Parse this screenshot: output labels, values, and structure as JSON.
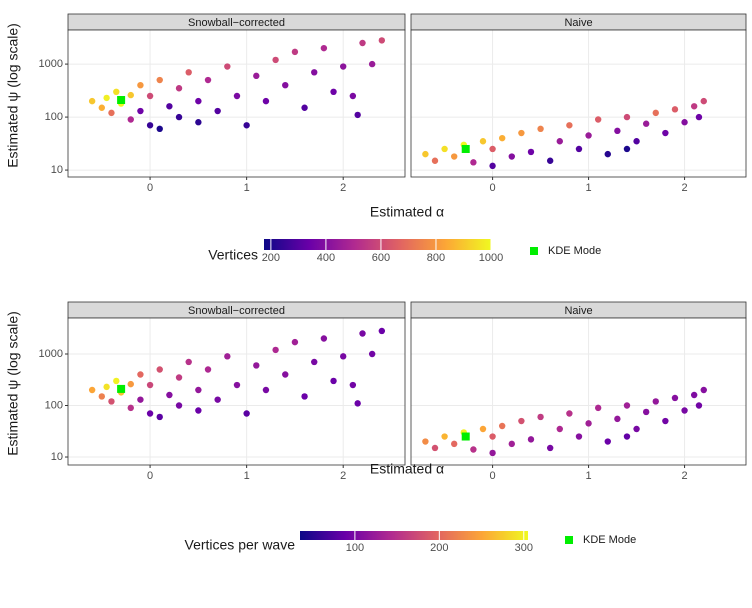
{
  "chart_data": [
    {
      "type": "scatter",
      "y_label": "Estimated ψ (log scale)",
      "x_label": "Estimated α",
      "log_y": true,
      "grid": true,
      "xlim": [
        -0.85,
        2.64
      ],
      "xticks": [
        0,
        1,
        2
      ],
      "ylim": [
        7.4,
        4400
      ],
      "yticks": [
        10,
        100,
        1000
      ],
      "colorbar": {
        "title": "Vertices",
        "lim": [
          175,
          1000
        ],
        "ticks": [
          200,
          400,
          600,
          800,
          1000
        ],
        "colormap": [
          "#0d0887",
          "#6a00a8",
          "#b12a90",
          "#e16462",
          "#fca636",
          "#f0f921"
        ]
      },
      "mode": {
        "name": "KDE Mode",
        "color": "#00ee00"
      },
      "facets": [
        {
          "title": "Snowball−corrected",
          "mode_x": -0.3,
          "mode_y": 210,
          "x": [
            -0.6,
            -0.5,
            -0.45,
            -0.4,
            -0.35,
            -0.3,
            -0.2,
            -0.2,
            -0.1,
            -0.1,
            0,
            0,
            0.1,
            0.1,
            0.2,
            0.3,
            0.3,
            0.4,
            0.5,
            0.5,
            0.6,
            0.7,
            0.8,
            0.9,
            1.0,
            1.1,
            1.2,
            1.3,
            1.4,
            1.5,
            1.6,
            1.7,
            1.8,
            1.9,
            2.0,
            2.1,
            2.2,
            2.4,
            2.3,
            2.15
          ],
          "y": [
            200,
            150,
            230,
            120,
            300,
            180,
            260,
            90,
            400,
            130,
            70,
            250,
            500,
            60,
            160,
            350,
            100,
            700,
            200,
            80,
            500,
            130,
            900,
            250,
            70,
            600,
            200,
            1200,
            400,
            1700,
            150,
            700,
            2000,
            300,
            900,
            250,
            2500,
            2800,
            1000,
            110
          ],
          "c": [
            900,
            850,
            980,
            700,
            950,
            1000,
            900,
            500,
            800,
            350,
            250,
            600,
            750,
            200,
            300,
            550,
            250,
            650,
            350,
            230,
            500,
            300,
            600,
            380,
            250,
            450,
            350,
            600,
            400,
            550,
            300,
            400,
            500,
            350,
            420,
            380,
            550,
            600,
            450,
            300
          ]
        },
        {
          "title": "Naive",
          "mode_x": -0.28,
          "mode_y": 25,
          "x": [
            -0.7,
            -0.6,
            -0.5,
            -0.4,
            -0.3,
            -0.2,
            -0.1,
            0,
            0,
            0.1,
            0.2,
            0.3,
            0.4,
            0.5,
            0.6,
            0.7,
            0.8,
            0.9,
            1.0,
            1.1,
            1.2,
            1.3,
            1.4,
            1.5,
            1.6,
            1.7,
            1.8,
            1.9,
            2.0,
            2.1,
            2.2,
            2.15,
            1.4
          ],
          "y": [
            20,
            15,
            25,
            18,
            30,
            14,
            35,
            12,
            25,
            40,
            18,
            50,
            22,
            60,
            15,
            35,
            70,
            25,
            45,
            90,
            20,
            55,
            100,
            35,
            75,
            120,
            50,
            140,
            80,
            160,
            200,
            100,
            25
          ],
          "c": [
            900,
            700,
            950,
            800,
            1000,
            500,
            900,
            300,
            650,
            850,
            400,
            800,
            350,
            750,
            250,
            450,
            700,
            300,
            450,
            650,
            220,
            400,
            600,
            300,
            450,
            700,
            350,
            650,
            400,
            550,
            600,
            350,
            200
          ]
        }
      ]
    },
    {
      "type": "scatter",
      "y_label": "Estimated ψ (log scale)",
      "x_label": "Estimated α",
      "log_y": true,
      "grid": true,
      "xlim": [
        -0.85,
        2.64
      ],
      "xticks": [
        0,
        1,
        2
      ],
      "ylim": [
        7,
        5000
      ],
      "yticks": [
        10,
        100,
        1000
      ],
      "colorbar": {
        "title": "Vertices per wave",
        "lim": [
          35,
          305
        ],
        "ticks": [
          100,
          200,
          300
        ],
        "colormap": [
          "#0d0887",
          "#6a00a8",
          "#b12a90",
          "#e16462",
          "#fca636",
          "#f0f921"
        ]
      },
      "mode": {
        "name": "KDE Mode",
        "color": "#00ee00"
      },
      "facets": [
        {
          "title": "Snowball−corrected",
          "mode_x": -0.3,
          "mode_y": 210,
          "x": [
            -0.6,
            -0.5,
            -0.45,
            -0.4,
            -0.35,
            -0.3,
            -0.2,
            -0.2,
            -0.1,
            -0.1,
            0,
            0,
            0.1,
            0.1,
            0.2,
            0.3,
            0.3,
            0.4,
            0.5,
            0.5,
            0.6,
            0.7,
            0.8,
            0.9,
            1.0,
            1.1,
            1.2,
            1.3,
            1.4,
            1.5,
            1.6,
            1.7,
            1.8,
            1.9,
            2.0,
            2.1,
            2.2,
            2.4,
            2.3,
            2.15
          ],
          "y": [
            200,
            150,
            230,
            120,
            300,
            180,
            260,
            90,
            400,
            130,
            70,
            250,
            500,
            60,
            160,
            350,
            100,
            700,
            200,
            80,
            500,
            130,
            900,
            250,
            70,
            600,
            200,
            1200,
            400,
            1700,
            150,
            700,
            2000,
            300,
            900,
            250,
            2500,
            2800,
            1000,
            110
          ],
          "c": [
            250,
            220,
            290,
            180,
            300,
            270,
            240,
            150,
            200,
            120,
            90,
            170,
            180,
            80,
            110,
            160,
            100,
            150,
            120,
            90,
            140,
            100,
            130,
            110,
            80,
            120,
            100,
            140,
            110,
            130,
            90,
            100,
            110,
            90,
            100,
            95,
            100,
            90,
            95,
            90
          ]
        },
        {
          "title": "Naive",
          "mode_x": -0.28,
          "mode_y": 25,
          "x": [
            -0.7,
            -0.6,
            -0.5,
            -0.4,
            -0.3,
            -0.2,
            -0.1,
            0,
            0,
            0.1,
            0.2,
            0.3,
            0.4,
            0.5,
            0.6,
            0.7,
            0.8,
            0.9,
            1.0,
            1.1,
            1.2,
            1.3,
            1.4,
            1.5,
            1.6,
            1.7,
            1.8,
            1.9,
            2.0,
            2.1,
            2.2,
            2.15,
            1.4
          ],
          "y": [
            20,
            15,
            25,
            18,
            30,
            14,
            35,
            12,
            25,
            40,
            18,
            50,
            22,
            60,
            15,
            35,
            70,
            25,
            45,
            90,
            20,
            55,
            100,
            35,
            75,
            120,
            50,
            140,
            80,
            160,
            200,
            100,
            25
          ],
          "c": [
            230,
            180,
            260,
            200,
            300,
            150,
            250,
            120,
            190,
            210,
            130,
            180,
            120,
            160,
            100,
            140,
            150,
            110,
            130,
            140,
            90,
            120,
            130,
            100,
            110,
            120,
            95,
            110,
            100,
            105,
            110,
            95,
            85
          ]
        }
      ]
    }
  ]
}
